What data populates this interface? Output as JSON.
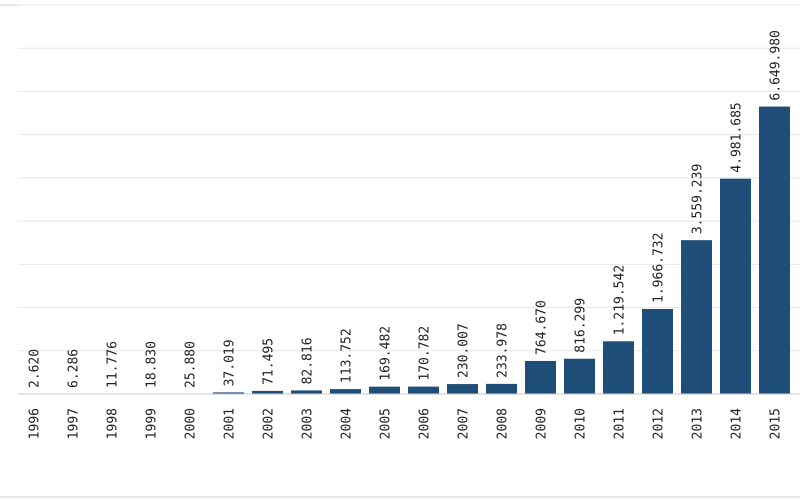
{
  "chart_data": {
    "type": "bar",
    "title": "",
    "xlabel": "",
    "ylabel": "",
    "categories": [
      "1996",
      "1997",
      "1998",
      "1999",
      "2000",
      "2001",
      "2002",
      "2003",
      "2004",
      "2005",
      "2006",
      "2007",
      "2008",
      "2009",
      "2010",
      "2011",
      "2012",
      "2013",
      "2014",
      "2015"
    ],
    "values": [
      2620,
      6286,
      11776,
      18830,
      25880,
      37019,
      71495,
      82816,
      113752,
      169482,
      170782,
      230007,
      233978,
      764670,
      816299,
      1219542,
      1966732,
      3559239,
      4981685,
      6649980
    ],
    "value_labels": [
      "2.620",
      "6.286",
      "11.776",
      "18.830",
      "25.880",
      "37.019",
      "71.495",
      "82.816",
      "113.752",
      "169.482",
      "170.782",
      "230.007",
      "233.978",
      "764.670",
      "816.299",
      "1.219.542",
      "1.966.732",
      "3.559.239",
      "4.981.685",
      "6.649.980"
    ],
    "ylim": [
      0,
      9000000
    ],
    "grid": true,
    "legend": "none",
    "bar_color": "#1f4e79"
  }
}
